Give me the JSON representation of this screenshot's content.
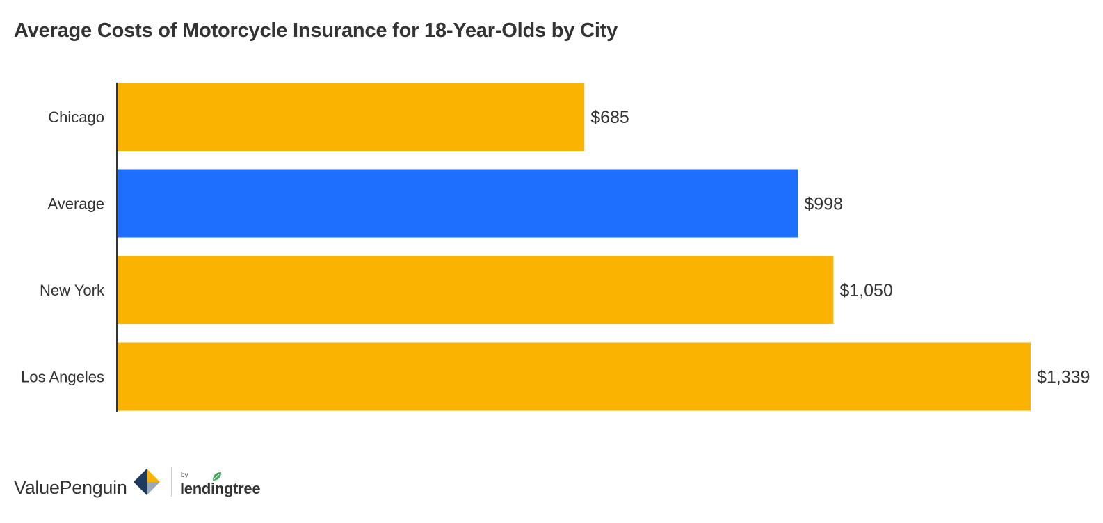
{
  "chart_data": {
    "type": "bar",
    "orientation": "horizontal",
    "title": "Average Costs of Motorcycle Insurance for 18-Year-Olds by City",
    "categories": [
      "Chicago",
      "Average",
      "New York",
      "Los Angeles"
    ],
    "values": [
      685,
      998,
      1050,
      1339
    ],
    "value_labels": [
      "$685",
      "$998",
      "$1,050",
      "$1,339"
    ],
    "highlight_category": "Average",
    "xlim": [
      0,
      1339
    ],
    "grid": false,
    "legend": "none",
    "colors": {
      "bar": "#F9B300",
      "highlight": "#1F6FFF",
      "axis": "#333333",
      "text": "#333333"
    }
  },
  "footer": {
    "brand": "ValuePenguin",
    "by": "by",
    "partner": "lendingtree"
  }
}
